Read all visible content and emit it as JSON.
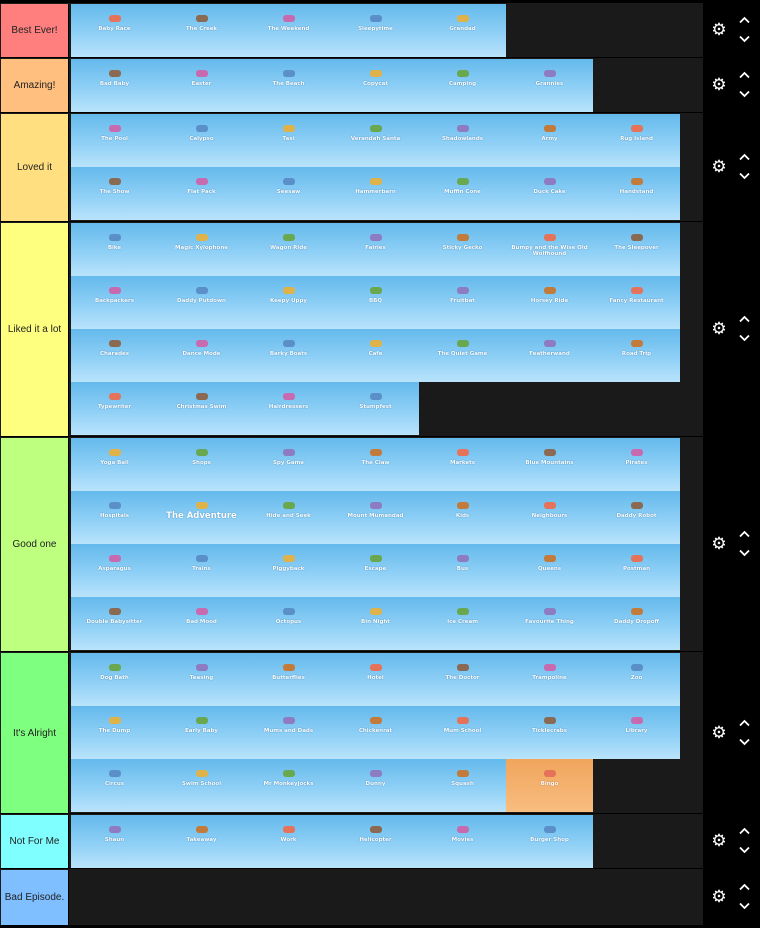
{
  "tiers": [
    {
      "label": "Best Ever!",
      "color": "#ff7f7f",
      "items": [
        "Baby Race",
        "The Creek",
        "The Weekend",
        "Sleepytime",
        "Grandad"
      ]
    },
    {
      "label": "Amazing!",
      "color": "#ffbf7f",
      "items": [
        "Bad Baby",
        "Easter",
        "The Beach",
        "Copycat",
        "Camping",
        "Grannies"
      ]
    },
    {
      "label": "Loved it",
      "color": "#ffdf7f",
      "items": [
        "The Pool",
        "Calypso",
        "Taxi",
        "Verandah Santa",
        "Shadowlands",
        "Army",
        "Rug Island",
        "The Show",
        "Flat Pack",
        "Seesaw",
        "Hammerbarn",
        "Muffin Cone",
        "Duck Cake",
        "Handstand"
      ]
    },
    {
      "label": "Liked it a lot",
      "color": "#ffff7f",
      "items": [
        "Bike",
        "Magic Xylophone",
        "Wagon Ride",
        "Fairies",
        "Sticky Gecko",
        "Bumpy and the Wise Old Wolfhound",
        "The Sleepover",
        "Backpackers",
        "Daddy Putdown",
        "Keepy Uppy",
        "BBQ",
        "Fruitbat",
        "Horsey Ride",
        "Fancy Restaurant",
        "Charades",
        "Dance Mode",
        "Barky Boats",
        "Cafe",
        "The Quiet Game",
        "Featherwand",
        "Road Trip",
        "Typewriter",
        "Christmas Swim",
        "Hairdressers",
        "Stumpfest"
      ]
    },
    {
      "label": "Good one",
      "color": "#bfff7f",
      "items": [
        "Yoga Ball",
        "Shops",
        "Spy Game",
        "The Claw",
        "Markets",
        "Blue Mountains",
        "Pirates",
        "Hospitals",
        "The Adventure",
        "Hide and Seek",
        "Mount Mumandad",
        "Kids",
        "Neighbours",
        "Daddy Robot",
        "Asparagus",
        "Trains",
        "Piggyback",
        "Escape",
        "Bus",
        "Queens",
        "Postman",
        "Double Babysitter",
        "Bad Mood",
        "Octopus",
        "Bin Night",
        "Ice Cream",
        "Favourite Thing",
        "Daddy Dropoff"
      ]
    },
    {
      "label": "It's Alright",
      "color": "#7fff7f",
      "items": [
        "Dog Bath",
        "Teasing",
        "Butterflies",
        "Hotel",
        "The Doctor",
        "Trampoline",
        "Zoo",
        "The Dump",
        "Early Baby",
        "Mums and Dads",
        "Chickenrat",
        "Mum School",
        "Ticklecrabs",
        "Library",
        "Circus",
        "Swim School",
        "Mr Monkeyjocks",
        "Dunny",
        "Squash",
        "Bingo"
      ]
    },
    {
      "label": "Not For Me",
      "color": "#7fffff",
      "items": [
        "Shaun",
        "Takeaway",
        "Work",
        "Helicopter",
        "Movies",
        "Burger Shop"
      ]
    },
    {
      "label": "Bad Episode.",
      "color": "#7fbfff",
      "items": []
    }
  ]
}
